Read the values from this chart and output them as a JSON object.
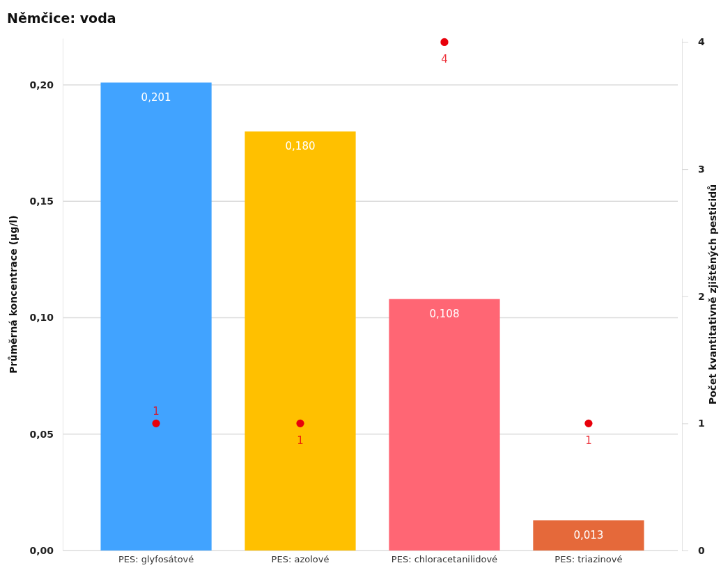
{
  "chart_data": {
    "type": "bar",
    "title": "Němčice: voda",
    "ylabel": "Průměrná koncentrace (µg/l)",
    "y2label": "Počet kvantitativně zjištěných pesticidů",
    "categories": [
      "PES: glyfosátové",
      "PES: azolové",
      "PES: chloracetanilidové",
      "PES: triazinové"
    ],
    "series": [
      {
        "colors": [
          "#41a3ff",
          "#ffc000",
          "#ff6674",
          "#e5693a"
        ],
        "values": [
          0.201,
          0.18,
          0.108,
          0.013
        ],
        "value_labels": [
          "0,201",
          "0,180",
          "0,108",
          "0,013"
        ]
      },
      {
        "type": "scatter",
        "axis": "y2",
        "color": "#e8000b",
        "values": [
          1,
          1,
          4,
          1
        ],
        "value_labels": [
          "1",
          "1",
          "4",
          "1"
        ]
      }
    ],
    "ylim": [
      0,
      0.22
    ],
    "yticks": [
      {
        "value": 0,
        "label": "0,00"
      },
      {
        "value": 0.05,
        "label": "0,05"
      },
      {
        "value": 0.1,
        "label": "0,10"
      },
      {
        "value": 0.15,
        "label": "0,15"
      },
      {
        "value": 0.2,
        "label": "0,20"
      }
    ],
    "y2lim": [
      0,
      4.03
    ],
    "y2ticks": [
      0,
      1,
      2,
      3,
      4
    ],
    "grid": "y",
    "marker": "circle"
  }
}
